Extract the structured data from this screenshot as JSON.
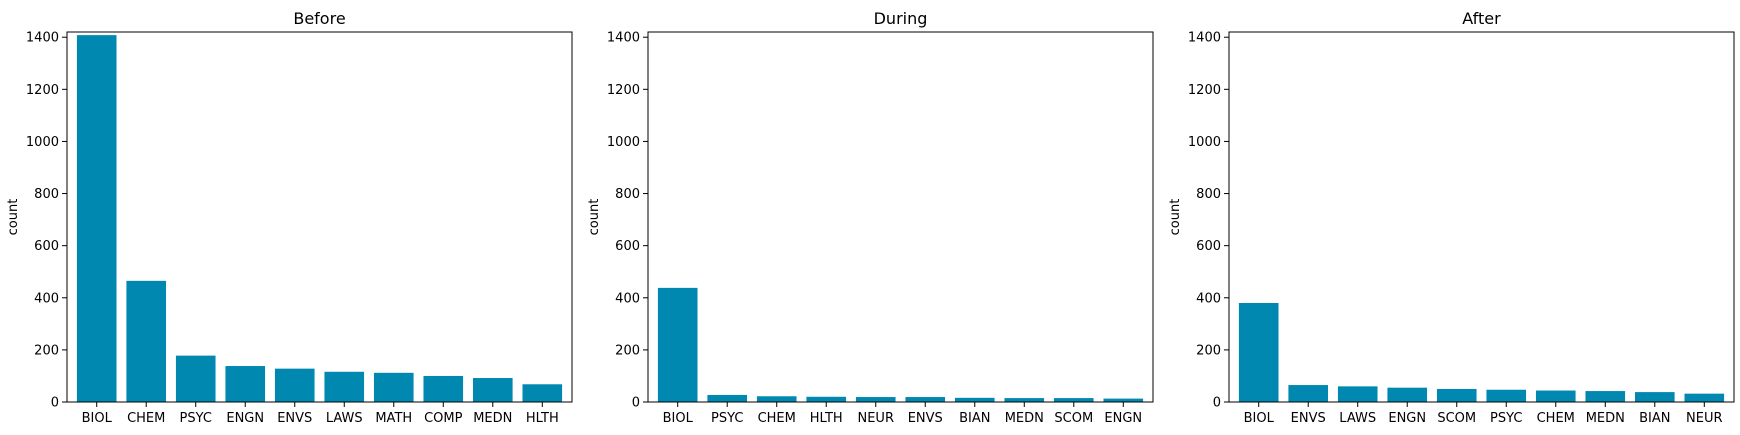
{
  "colors": {
    "bar": "#0088B0",
    "axis": "#000000",
    "background": "#ffffff"
  },
  "chart_data": [
    {
      "type": "bar",
      "title": "Before",
      "ylabel": "count",
      "xlabel": "",
      "ylim": [
        0,
        1420
      ],
      "yticks": [
        0,
        200,
        400,
        600,
        800,
        1000,
        1200,
        1400
      ],
      "grid": false,
      "categories": [
        "BIOL",
        "CHEM",
        "PSYC",
        "ENGN",
        "ENVS",
        "LAWS",
        "MATH",
        "COMP",
        "MEDN",
        "HLTH"
      ],
      "values": [
        1408,
        465,
        178,
        138,
        128,
        116,
        112,
        100,
        92,
        68
      ]
    },
    {
      "type": "bar",
      "title": "During",
      "ylabel": "count",
      "xlabel": "",
      "ylim": [
        0,
        1420
      ],
      "yticks": [
        0,
        200,
        400,
        600,
        800,
        1000,
        1200,
        1400
      ],
      "grid": false,
      "categories": [
        "BIOL",
        "PSYC",
        "CHEM",
        "HLTH",
        "NEUR",
        "ENVS",
        "BIAN",
        "MEDN",
        "SCOM",
        "ENGN"
      ],
      "values": [
        438,
        27,
        22,
        20,
        19,
        19,
        16,
        15,
        15,
        13
      ]
    },
    {
      "type": "bar",
      "title": "After",
      "ylabel": "count",
      "xlabel": "",
      "ylim": [
        0,
        1420
      ],
      "yticks": [
        0,
        200,
        400,
        600,
        800,
        1000,
        1200,
        1400
      ],
      "grid": false,
      "categories": [
        "BIOL",
        "ENVS",
        "LAWS",
        "ENGN",
        "SCOM",
        "PSYC",
        "CHEM",
        "MEDN",
        "BIAN",
        "NEUR"
      ],
      "values": [
        380,
        65,
        60,
        55,
        50,
        47,
        44,
        42,
        38,
        32
      ]
    }
  ]
}
